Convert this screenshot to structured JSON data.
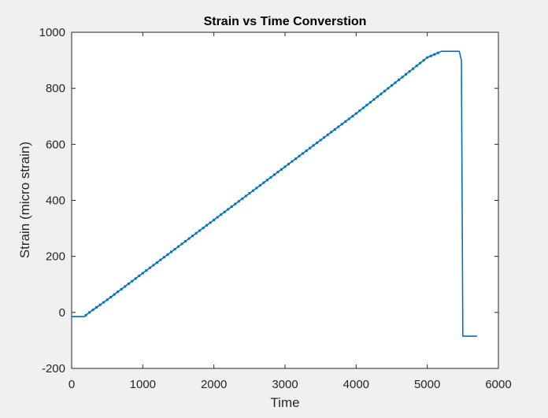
{
  "chart_data": {
    "type": "line",
    "title": "Strain vs Time Converstion",
    "xlabel": "Time",
    "ylabel": "Strain (micro strain)",
    "xlim": [
      0,
      6000
    ],
    "ylim": [
      -200,
      1000
    ],
    "xticks": [
      0,
      1000,
      2000,
      3000,
      4000,
      5000,
      6000
    ],
    "yticks": [
      -200,
      0,
      200,
      400,
      600,
      800,
      1000
    ],
    "grid": false,
    "legend": "none",
    "series_color": "#0072bd",
    "series": [
      {
        "x": [
          0,
          180,
          200,
          250,
          500,
          1000,
          1500,
          2000,
          2500,
          3000,
          3500,
          4000,
          4500,
          5000,
          5200,
          5450,
          5480,
          5500,
          5700
        ],
        "y": [
          -15,
          -15,
          -10,
          0,
          45,
          140,
          235,
          330,
          425,
          520,
          615,
          710,
          810,
          910,
          932,
          932,
          900,
          -85,
          -85
        ]
      }
    ]
  }
}
